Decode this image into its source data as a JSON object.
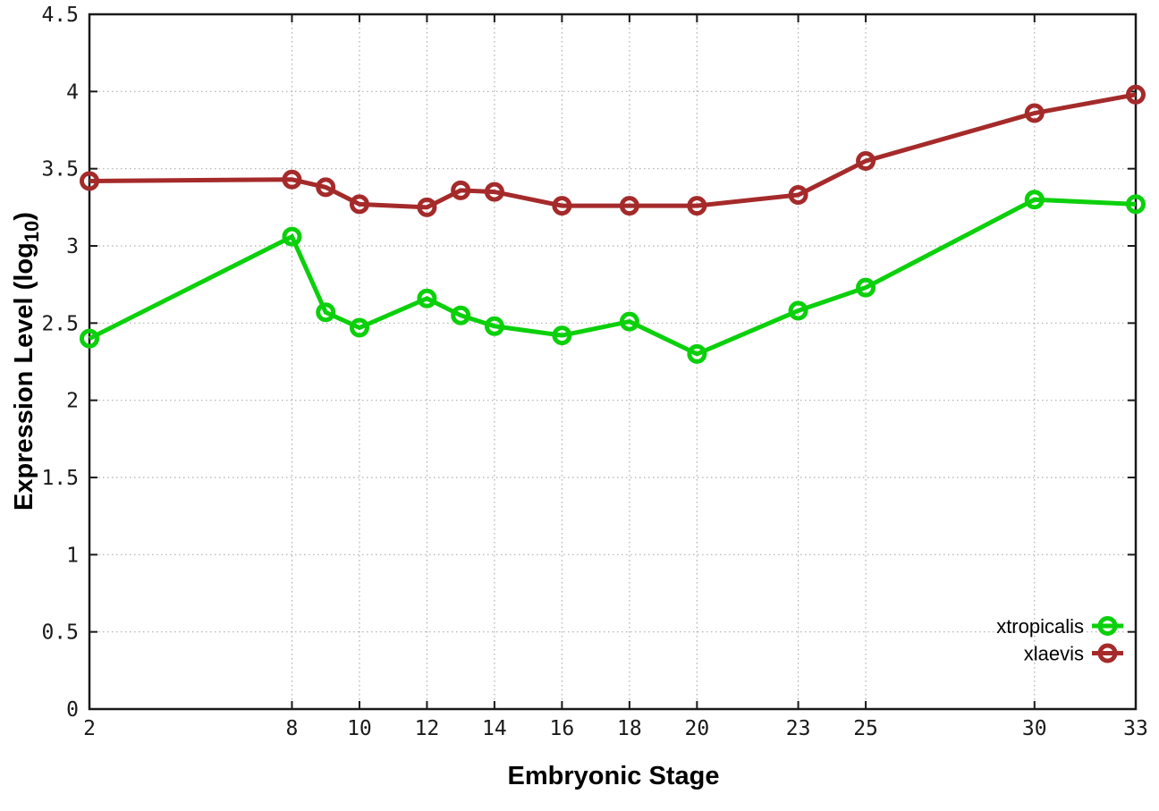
{
  "chart_data": {
    "type": "line",
    "title": "",
    "xlabel": "Embryonic Stage",
    "ylabel": "Expression Level (log10)",
    "ylabel_prefix": "Expression Level (log",
    "ylabel_subscript": "10",
    "ylabel_suffix": ")",
    "x": [
      2,
      8,
      9,
      10,
      12,
      13,
      14,
      16,
      18,
      20,
      23,
      25,
      30,
      33
    ],
    "series": [
      {
        "name": "xtropicalis",
        "color": "#0bd00b",
        "marker": "open-circle",
        "values": [
          2.4,
          3.06,
          2.57,
          2.47,
          2.66,
          2.55,
          2.48,
          2.42,
          2.51,
          2.3,
          2.58,
          2.73,
          3.3,
          3.27
        ]
      },
      {
        "name": "xlaevis",
        "color": "#a52a2a",
        "marker": "open-circle",
        "values": [
          3.42,
          3.43,
          3.38,
          3.27,
          3.25,
          3.36,
          3.35,
          3.26,
          3.26,
          3.26,
          3.33,
          3.55,
          3.86,
          3.98
        ]
      }
    ],
    "xlim": [
      2,
      33
    ],
    "ylim": [
      0,
      4.5
    ],
    "x_ticks": [
      2,
      8,
      10,
      12,
      14,
      16,
      18,
      20,
      23,
      25,
      30,
      33
    ],
    "x_tick_labels": [
      "2",
      "8",
      "10",
      "12",
      "14",
      "16",
      "18",
      "20",
      "23",
      "25",
      "30",
      "33"
    ],
    "y_ticks": [
      0,
      0.5,
      1,
      1.5,
      2,
      2.5,
      3,
      3.5,
      4,
      4.5
    ],
    "y_tick_labels": [
      "0",
      "0.5",
      "1",
      "1.5",
      "2",
      "2.5",
      "3",
      "3.5",
      "4",
      "4.5"
    ],
    "grid": true,
    "grid_style": "dotted",
    "legend_position": "bottom-right",
    "legend": [
      "xtropicalis",
      "xlaevis"
    ],
    "colors": {
      "background": "#ffffff",
      "grid": "#aeaeae",
      "border": "#1a1a1a",
      "tick_text": "#1a1a1a",
      "xtropicalis": "#0bd00b",
      "xlaevis": "#a52a2a"
    }
  }
}
